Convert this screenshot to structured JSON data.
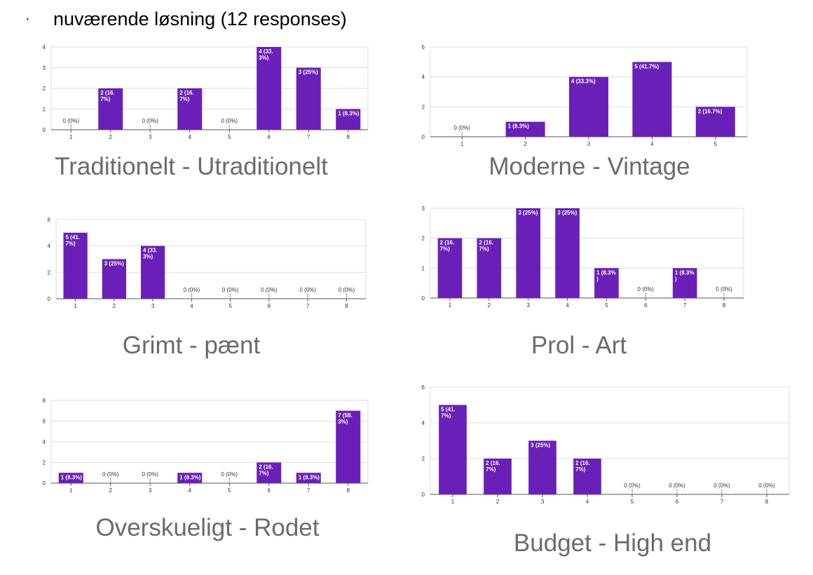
{
  "header": {
    "bullet": "·",
    "text": "nuværende løsning (12 responses)"
  },
  "colors": {
    "bar": "#6a20b8",
    "grid": "#dddddd",
    "axis": "#555555",
    "caption": "#6b6b6b"
  },
  "chart_data": [
    {
      "type": "bar",
      "title": "Traditionelt - Utraditionelt",
      "categories": [
        "1",
        "2",
        "3",
        "4",
        "5",
        "6",
        "7",
        "8"
      ],
      "values": [
        0,
        2,
        0,
        2,
        0,
        4,
        3,
        1
      ],
      "labels": [
        [
          "0 (0%)"
        ],
        [
          "2 (16.",
          "7%)"
        ],
        [
          "0 (0%)"
        ],
        [
          "2 (16.",
          "7%)"
        ],
        [
          "0 (0%)"
        ],
        [
          "4 (33.",
          "3%)"
        ],
        [
          "3 (25%)"
        ],
        [
          "1 (8.3%)"
        ]
      ],
      "yticks": [
        0,
        1,
        2,
        3,
        4
      ],
      "ylim": [
        0,
        4
      ]
    },
    {
      "type": "bar",
      "title": "Moderne - Vintage",
      "categories": [
        "1",
        "2",
        "3",
        "4",
        "5"
      ],
      "values": [
        0,
        1,
        4,
        5,
        2
      ],
      "labels": [
        [
          "0 (0%)"
        ],
        [
          "1 (8.3%)"
        ],
        [
          "4 (33.3%)"
        ],
        [
          "5 (41.7%)"
        ],
        [
          "2 (16.7%)"
        ]
      ],
      "yticks": [
        0,
        2,
        4,
        6
      ],
      "ylim": [
        0,
        6
      ]
    },
    {
      "type": "bar",
      "title": "Grimt - pænt",
      "categories": [
        "1",
        "2",
        "3",
        "4",
        "5",
        "6",
        "7",
        "8"
      ],
      "values": [
        5,
        3,
        4,
        0,
        0,
        0,
        0,
        0
      ],
      "labels": [
        [
          "5 (41.",
          "7%)"
        ],
        [
          "3 (25%)"
        ],
        [
          "4 (33.",
          "3%)"
        ],
        [
          "0 (0%)"
        ],
        [
          "0 (0%)"
        ],
        [
          "0 (0%)"
        ],
        [
          "0 (0%)"
        ],
        [
          "0 (0%)"
        ]
      ],
      "yticks": [
        0,
        2,
        4,
        6
      ],
      "ylim": [
        0,
        6
      ]
    },
    {
      "type": "bar",
      "title": "Prol - Art",
      "categories": [
        "1",
        "2",
        "3",
        "4",
        "5",
        "6",
        "7",
        "8"
      ],
      "values": [
        2,
        2,
        3,
        3,
        1,
        0,
        1,
        0
      ],
      "labels": [
        [
          "2 (16.",
          "7%)"
        ],
        [
          "2 (16.",
          "7%)"
        ],
        [
          "3 (25%)"
        ],
        [
          "3 (25%)"
        ],
        [
          "1 (8.3%",
          ")"
        ],
        [
          "0 (0%)"
        ],
        [
          "1 (8.3%",
          ")"
        ],
        [
          "0 (0%)"
        ]
      ],
      "yticks": [
        0,
        1,
        2,
        3
      ],
      "ylim": [
        0,
        3
      ]
    },
    {
      "type": "bar",
      "title": "Overskueligt - Rodet",
      "categories": [
        "1",
        "2",
        "3",
        "4",
        "5",
        "6",
        "7",
        "8"
      ],
      "values": [
        1,
        0,
        0,
        1,
        0,
        2,
        1,
        7
      ],
      "labels": [
        [
          "1 (8.3%)"
        ],
        [
          "0 (0%)"
        ],
        [
          "0 (0%)"
        ],
        [
          "1 (8.3%)"
        ],
        [
          "0 (0%)"
        ],
        [
          "2 (16.",
          "7%)"
        ],
        [
          "1 (8.3%)"
        ],
        [
          "7 (58.",
          "3%)"
        ]
      ],
      "yticks": [
        0,
        2,
        4,
        6,
        8
      ],
      "ylim": [
        0,
        8
      ]
    },
    {
      "type": "bar",
      "title": "Budget - High end",
      "categories": [
        "1",
        "2",
        "3",
        "4",
        "5",
        "6",
        "7",
        "8"
      ],
      "values": [
        5,
        2,
        3,
        2,
        0,
        0,
        0,
        0
      ],
      "labels": [
        [
          "5 (41.",
          "7%)"
        ],
        [
          "2 (16.",
          "7%)"
        ],
        [
          "3 (25%)"
        ],
        [
          "2 (16.",
          "7%)"
        ],
        [
          "0 (0%)"
        ],
        [
          "0 (0%)"
        ],
        [
          "0 (0%)"
        ],
        [
          "0 (0%)"
        ]
      ],
      "yticks": [
        0,
        2,
        4,
        6
      ],
      "ylim": [
        0,
        6
      ]
    }
  ]
}
